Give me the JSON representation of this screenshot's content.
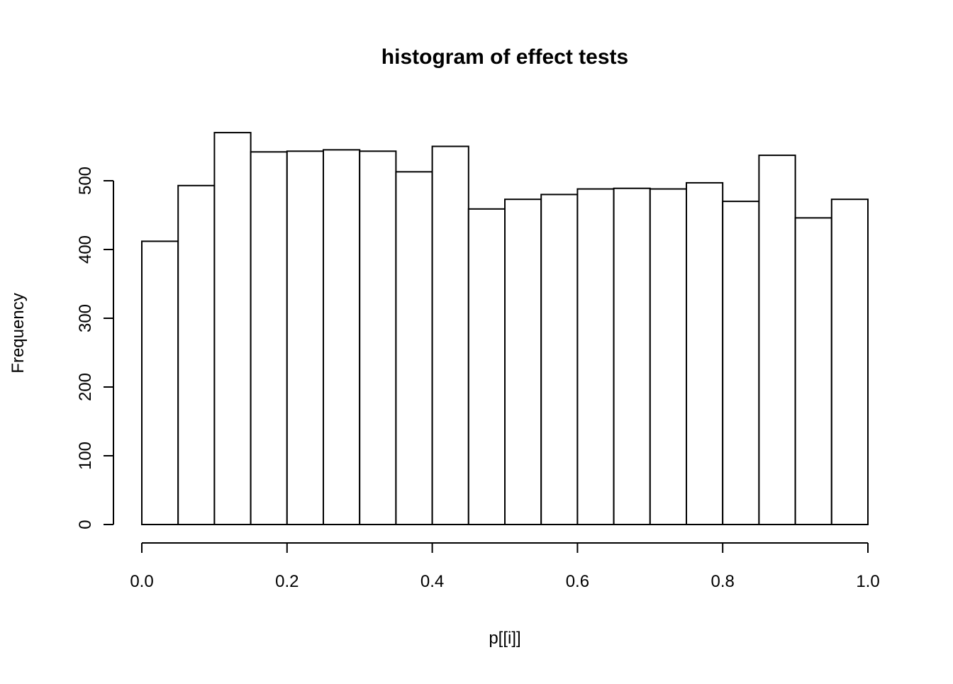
{
  "chart_data": {
    "type": "bar",
    "subtype": "histogram",
    "title": "histogram of effect tests",
    "xlabel": "p[[i]]",
    "ylabel": "Frequency",
    "bin_start": 0.0,
    "bin_width": 0.05,
    "bin_edges": [
      0.0,
      0.05,
      0.1,
      0.15,
      0.2,
      0.25,
      0.3,
      0.35,
      0.4,
      0.45,
      0.5,
      0.55,
      0.6,
      0.65,
      0.7,
      0.75,
      0.8,
      0.85,
      0.9,
      0.95,
      1.0
    ],
    "values": [
      412,
      493,
      570,
      542,
      543,
      545,
      543,
      513,
      550,
      459,
      473,
      480,
      488,
      489,
      488,
      497,
      470,
      537,
      446,
      473
    ],
    "x_ticks": [
      0.0,
      0.2,
      0.4,
      0.6,
      0.8,
      1.0
    ],
    "x_tick_labels": [
      "0.0",
      "0.2",
      "0.4",
      "0.6",
      "0.8",
      "1.0"
    ],
    "y_ticks": [
      0,
      100,
      200,
      300,
      400,
      500
    ],
    "y_tick_labels": [
      "0",
      "100",
      "200",
      "300",
      "400",
      "500"
    ],
    "xlim": [
      0.0,
      1.0
    ],
    "ylim": [
      0,
      580
    ],
    "grid": false,
    "legend": false,
    "bar_fill_color": "#ffffff",
    "bar_stroke_color": "#000000"
  }
}
